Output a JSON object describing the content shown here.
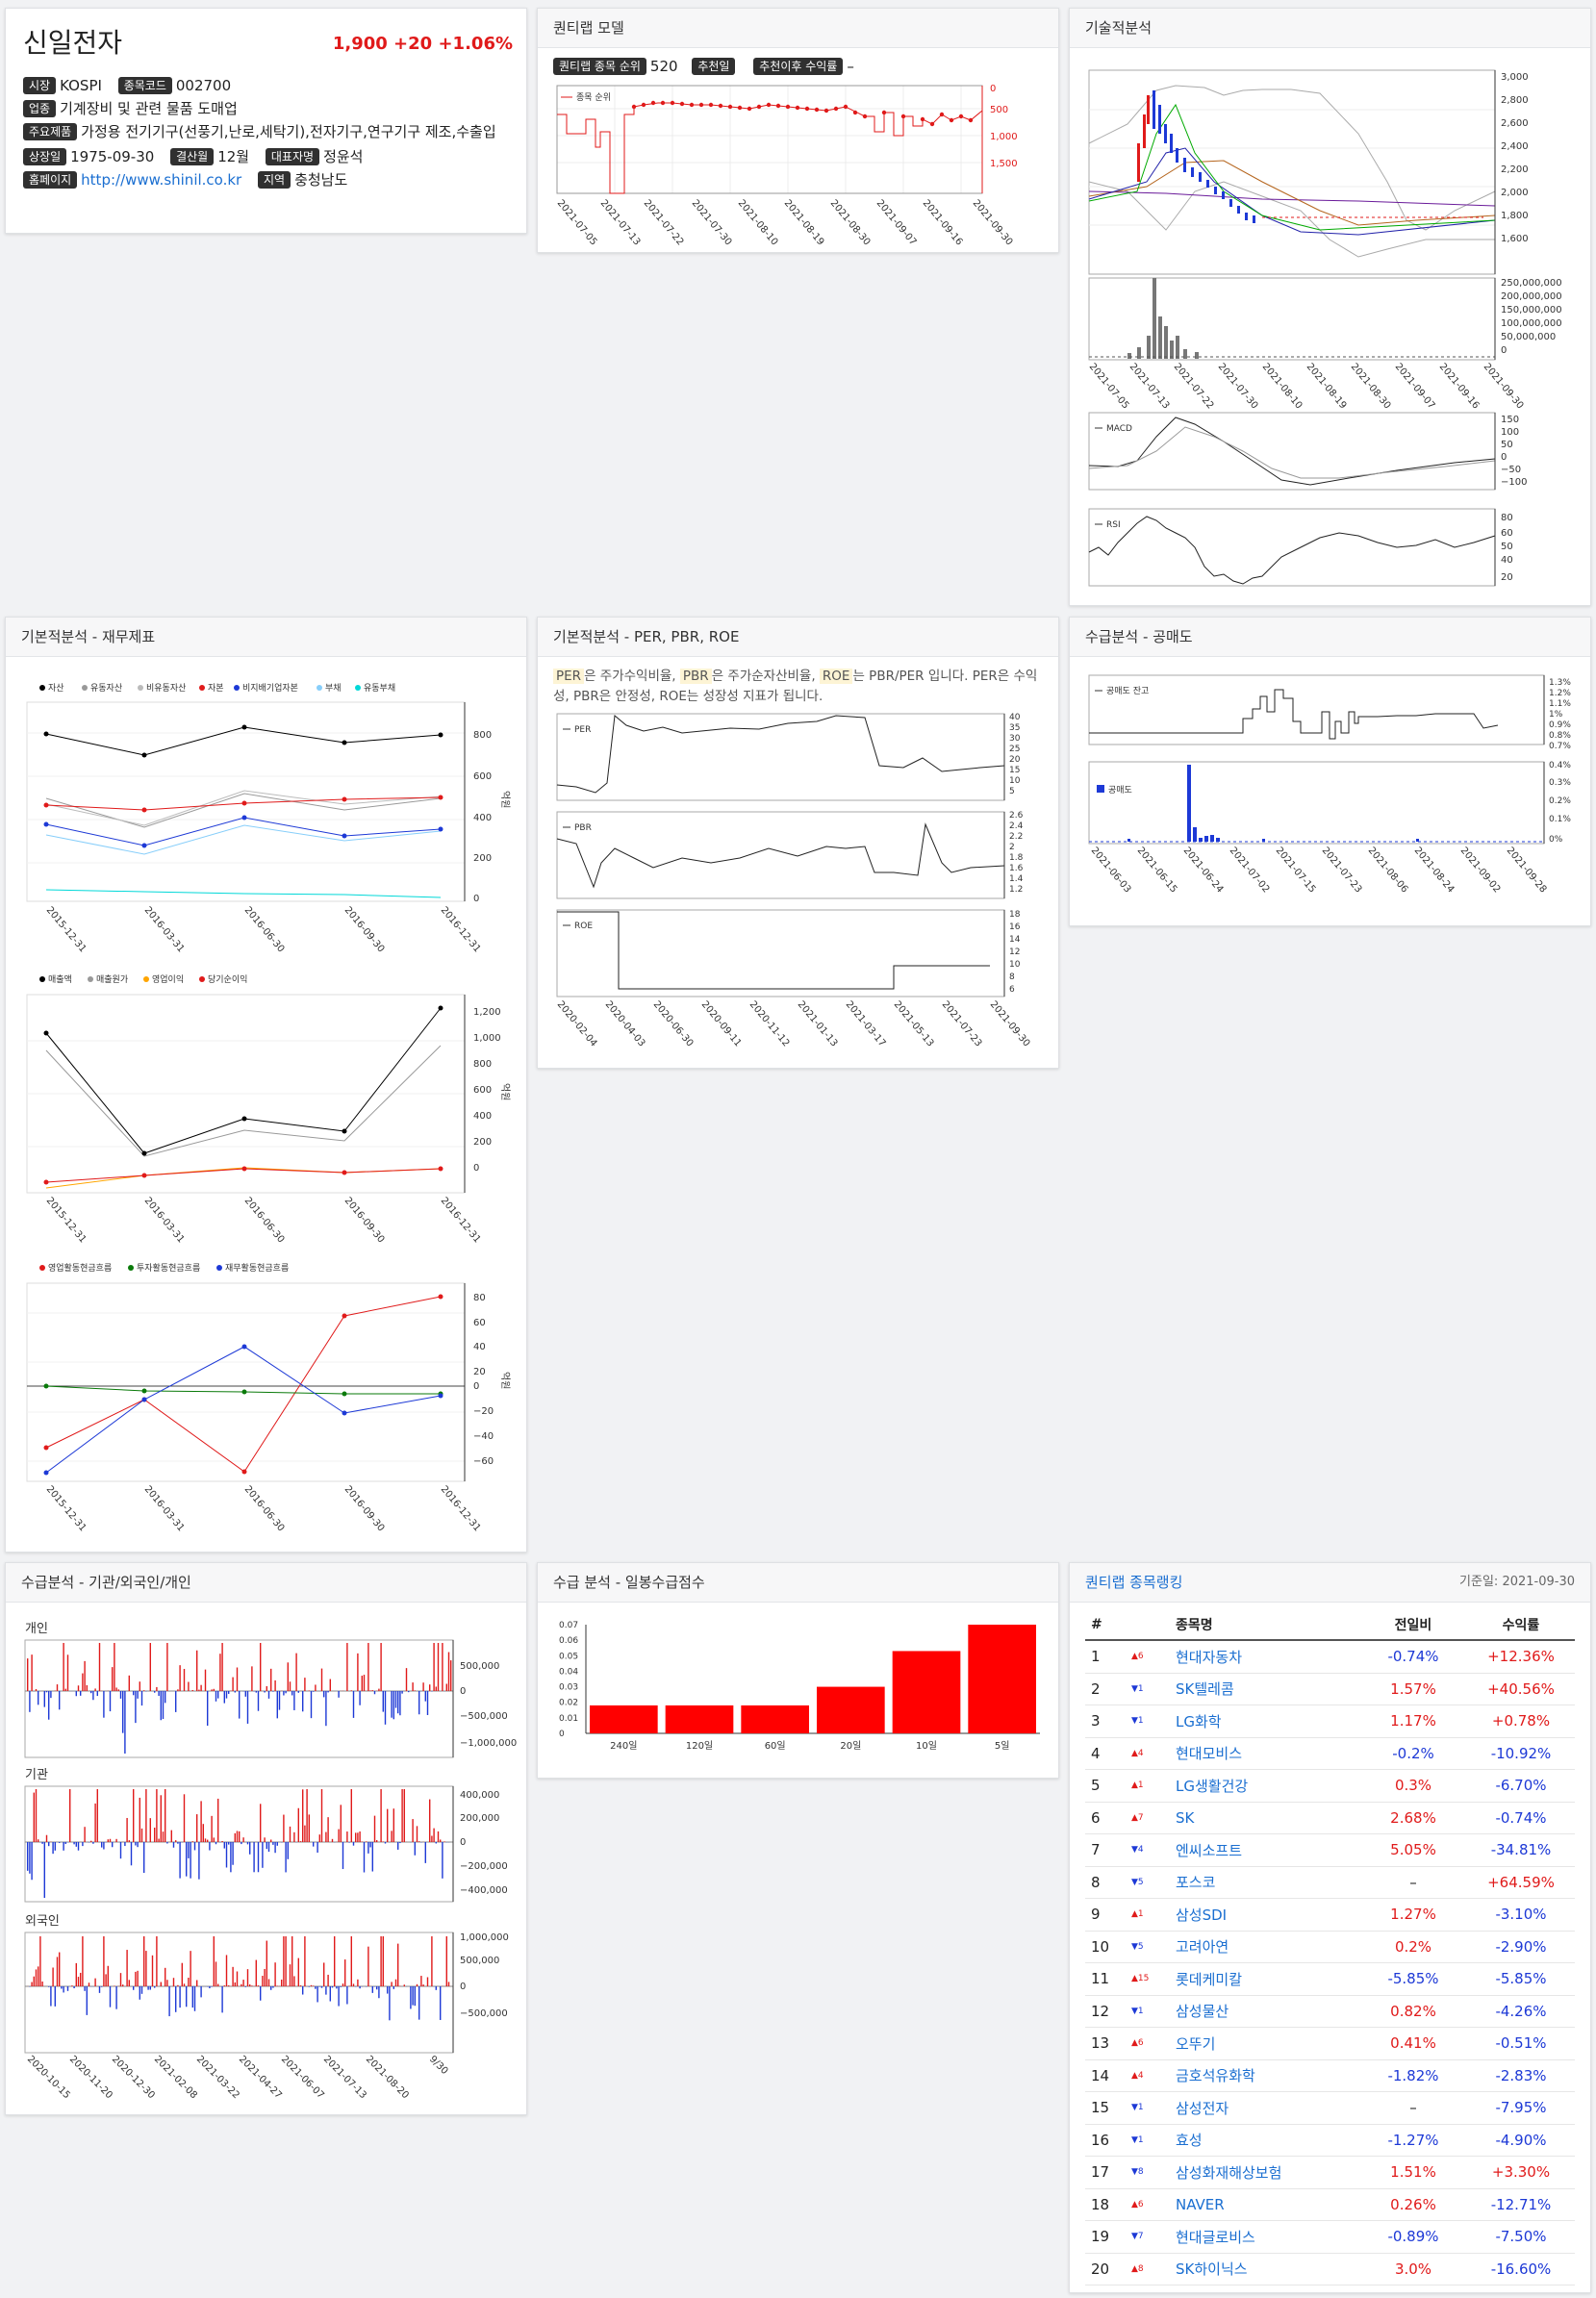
{
  "company": {
    "name": "신일전자",
    "price": "1,900",
    "change": "+20",
    "change_pct": "+1.06%",
    "market_label": "시장",
    "market": "KOSPI",
    "code_label": "종목코드",
    "code": "002700",
    "industry_label": "업종",
    "industry": "기계장비 및 관련 물품 도매업",
    "products_label": "주요제품",
    "products": "가정용 전기기구(선풍기,난로,세탁기),전자기구,연구기구 제조,수출입",
    "listed_label": "상장일",
    "listed": "1975-09-30",
    "fiscal_label": "결산월",
    "fiscal": "12월",
    "ceo_label": "대표자명",
    "ceo": "정윤석",
    "homepage_label": "홈페이지",
    "homepage": "http://www.shinil.co.kr",
    "region_label": "지역",
    "region": "충청남도"
  },
  "quantip": {
    "title": "퀀티랩 모델",
    "rank_label": "퀀티랩 종목 순위",
    "rank": "520",
    "rec_label": "추천일",
    "return_label": "추천이후 수익률",
    "return_value": "–",
    "legend": "종목 순위",
    "yticks": [
      "0",
      "500",
      "1,000",
      "1,500"
    ],
    "xticks": [
      "2021-07-05",
      "2021-07-13",
      "2021-07-22",
      "2021-07-30",
      "2021-08-10",
      "2021-08-19",
      "2021-08-30",
      "2021-09-07",
      "2021-09-16",
      "2021-09-30"
    ]
  },
  "technical": {
    "title": "기술적분석",
    "price_ticks": [
      "3,000",
      "2,800",
      "2,600",
      "2,400",
      "2,200",
      "2,000",
      "1,800",
      "1,600"
    ],
    "vol_ticks": [
      "250,000,000",
      "200,000,000",
      "150,000,000",
      "100,000,000",
      "50,000,000",
      "0"
    ],
    "xticks": [
      "2021-07-05",
      "2021-07-13",
      "2021-07-22",
      "2021-07-30",
      "2021-08-10",
      "2021-08-19",
      "2021-08-30",
      "2021-09-07",
      "2021-09-16",
      "2021-09-30"
    ],
    "macd_label": "MACD",
    "macd_ticks": [
      "150",
      "100",
      "50",
      "0",
      "−50",
      "−100"
    ],
    "rsi_label": "RSI",
    "rsi_ticks": [
      "80",
      "60",
      "50",
      "40",
      "20"
    ]
  },
  "fundamental": {
    "title": "기본적분석 - 재무제표",
    "legend1": [
      "자산",
      "유동자산",
      "비유동자산",
      "자본",
      "비지배기업자본",
      "부채",
      "유동부채"
    ],
    "y1": [
      "800",
      "600",
      "400",
      "200",
      "0"
    ],
    "legend2": [
      "매출액",
      "매출원가",
      "영업이익",
      "당기순이익"
    ],
    "y2": [
      "1,200",
      "1,000",
      "800",
      "600",
      "400",
      "200",
      "0"
    ],
    "legend3": [
      "영업활동현금흐름",
      "투자활동현금흐름",
      "재무활동현금흐름"
    ],
    "y3": [
      "80",
      "60",
      "40",
      "20",
      "0",
      "−20",
      "−40",
      "−60"
    ],
    "unit": "억원",
    "xticks": [
      "2015-12-31",
      "2016-03-31",
      "2016-06-30",
      "2016-09-30",
      "2016-12-31"
    ]
  },
  "per": {
    "title": "기본적분석 - PER, PBR, ROE",
    "desc_parts": [
      "PER",
      "은 주가수익비율, ",
      "PBR",
      "은 주가순자산비율, ",
      "ROE",
      "는 PBR/PER 입니다. PER은 수익성, PBR은 안정성, ROE는 성장성 지표가 됩니다."
    ],
    "per_label": "PER",
    "per_ticks": [
      "40",
      "35",
      "30",
      "25",
      "20",
      "15",
      "10",
      "5"
    ],
    "pbr_label": "PBR",
    "pbr_ticks": [
      "2.6",
      "2.4",
      "2.2",
      "2",
      "1.8",
      "1.6",
      "1.4",
      "1.2"
    ],
    "roe_label": "ROE",
    "roe_ticks": [
      "18",
      "16",
      "14",
      "12",
      "10",
      "8",
      "6"
    ],
    "xticks": [
      "2020-02-04",
      "2020-04-03",
      "2020-06-30",
      "2020-09-11",
      "2020-11-12",
      "2021-01-13",
      "2021-03-17",
      "2021-05-13",
      "2021-07-23",
      "2021-09-30"
    ]
  },
  "short": {
    "title": "수급분석 - 공매도",
    "bal_label": "공매도 잔고",
    "bal_ticks": [
      "1.3%",
      "1.2%",
      "1.1%",
      "1%",
      "0.9%",
      "0.8%",
      "0.7%"
    ],
    "vol_label": "공매도",
    "vol_ticks": [
      "0.4%",
      "0.3%",
      "0.2%",
      "0.1%",
      "0%"
    ],
    "xticks": [
      "2021-06-03",
      "2021-06-15",
      "2021-06-24",
      "2021-07-02",
      "2021-07-15",
      "2021-07-23",
      "2021-08-06",
      "2021-08-24",
      "2021-09-02",
      "2021-09-28"
    ]
  },
  "flow": {
    "title": "수급분석 - 기관/외국인/개인",
    "personal_label": "개인",
    "personal_ticks": [
      "500,000",
      "0",
      "−500,000",
      "−1,000,000"
    ],
    "inst_label": "기관",
    "inst_ticks": [
      "400,000",
      "200,000",
      "0",
      "−200,000",
      "−400,000"
    ],
    "foreign_label": "외국인",
    "foreign_ticks": [
      "1,000,000",
      "500,000",
      "0",
      "−500,000"
    ],
    "xticks": [
      "2020-10-15",
      "2020-11-20",
      "2020-12-30",
      "2021-02-08",
      "2021-03-22",
      "2021-04-27",
      "2021-06-07",
      "2021-07-13",
      "2021-08-20",
      "9/30"
    ]
  },
  "score": {
    "title": "수급 분석 - 일봉수급점수",
    "yticks": [
      "0.07",
      "0.06",
      "0.05",
      "0.04",
      "0.03",
      "0.02",
      "0.01",
      "0"
    ]
  },
  "chart_data": [
    {
      "type": "bar",
      "title": "수급 분석 - 일봉수급점수",
      "categories": [
        "240일",
        "120일",
        "60일",
        "20일",
        "10일",
        "5일"
      ],
      "values": [
        0.018,
        0.018,
        0.018,
        0.03,
        0.053,
        0.07
      ],
      "ylim": [
        0,
        0.07
      ],
      "color": "#ff0000"
    }
  ],
  "ranking": {
    "title": "퀀티랩 종목랭킹",
    "date": "기준일: 2021-09-30",
    "headers": [
      "#",
      "종목명",
      "전일비",
      "수익률"
    ],
    "rows": [
      {
        "n": "1",
        "dir": "up",
        "mv": "6",
        "name": "현대자동차",
        "chg": "-0.74%",
        "ret": "+12.36%"
      },
      {
        "n": "2",
        "dir": "dn",
        "mv": "1",
        "name": "SK텔레콤",
        "chg": "1.57%",
        "ret": "+40.56%"
      },
      {
        "n": "3",
        "dir": "dn",
        "mv": "1",
        "name": "LG화학",
        "chg": "1.17%",
        "ret": "+0.78%"
      },
      {
        "n": "4",
        "dir": "up",
        "mv": "4",
        "name": "현대모비스",
        "chg": "-0.2%",
        "ret": "-10.92%"
      },
      {
        "n": "5",
        "dir": "up",
        "mv": "1",
        "name": "LG생활건강",
        "chg": "0.3%",
        "ret": "-6.70%"
      },
      {
        "n": "6",
        "dir": "up",
        "mv": "7",
        "name": "SK",
        "chg": "2.68%",
        "ret": "-0.74%"
      },
      {
        "n": "7",
        "dir": "dn",
        "mv": "4",
        "name": "엔씨소프트",
        "chg": "5.05%",
        "ret": "-34.81%"
      },
      {
        "n": "8",
        "dir": "dn",
        "mv": "5",
        "name": "포스코",
        "chg": "–",
        "ret": "+64.59%"
      },
      {
        "n": "9",
        "dir": "up",
        "mv": "1",
        "name": "삼성SDI",
        "chg": "1.27%",
        "ret": "-3.10%"
      },
      {
        "n": "10",
        "dir": "dn",
        "mv": "5",
        "name": "고려아연",
        "chg": "0.2%",
        "ret": "-2.90%"
      },
      {
        "n": "11",
        "dir": "up",
        "mv": "15",
        "name": "롯데케미칼",
        "chg": "-5.85%",
        "ret": "-5.85%"
      },
      {
        "n": "12",
        "dir": "dn",
        "mv": "1",
        "name": "삼성물산",
        "chg": "0.82%",
        "ret": "-4.26%"
      },
      {
        "n": "13",
        "dir": "up",
        "mv": "6",
        "name": "오뚜기",
        "chg": "0.41%",
        "ret": "-0.51%"
      },
      {
        "n": "14",
        "dir": "up",
        "mv": "4",
        "name": "금호석유화학",
        "chg": "-1.82%",
        "ret": "-2.83%"
      },
      {
        "n": "15",
        "dir": "dn",
        "mv": "1",
        "name": "삼성전자",
        "chg": "–",
        "ret": "-7.95%"
      },
      {
        "n": "16",
        "dir": "dn",
        "mv": "1",
        "name": "효성",
        "chg": "-1.27%",
        "ret": "-4.90%"
      },
      {
        "n": "17",
        "dir": "dn",
        "mv": "8",
        "name": "삼성화재해상보험",
        "chg": "1.51%",
        "ret": "+3.30%"
      },
      {
        "n": "18",
        "dir": "up",
        "mv": "6",
        "name": "NAVER",
        "chg": "0.26%",
        "ret": "-12.71%"
      },
      {
        "n": "19",
        "dir": "dn",
        "mv": "7",
        "name": "현대글로비스",
        "chg": "-0.89%",
        "ret": "-7.50%"
      },
      {
        "n": "20",
        "dir": "up",
        "mv": "8",
        "name": "SK하이닉스",
        "chg": "3.0%",
        "ret": "-16.60%"
      }
    ]
  },
  "colors": {
    "up": "#e01a1a",
    "down": "#1d39d6",
    "bar": "#ff0000",
    "badge": "#303030"
  }
}
